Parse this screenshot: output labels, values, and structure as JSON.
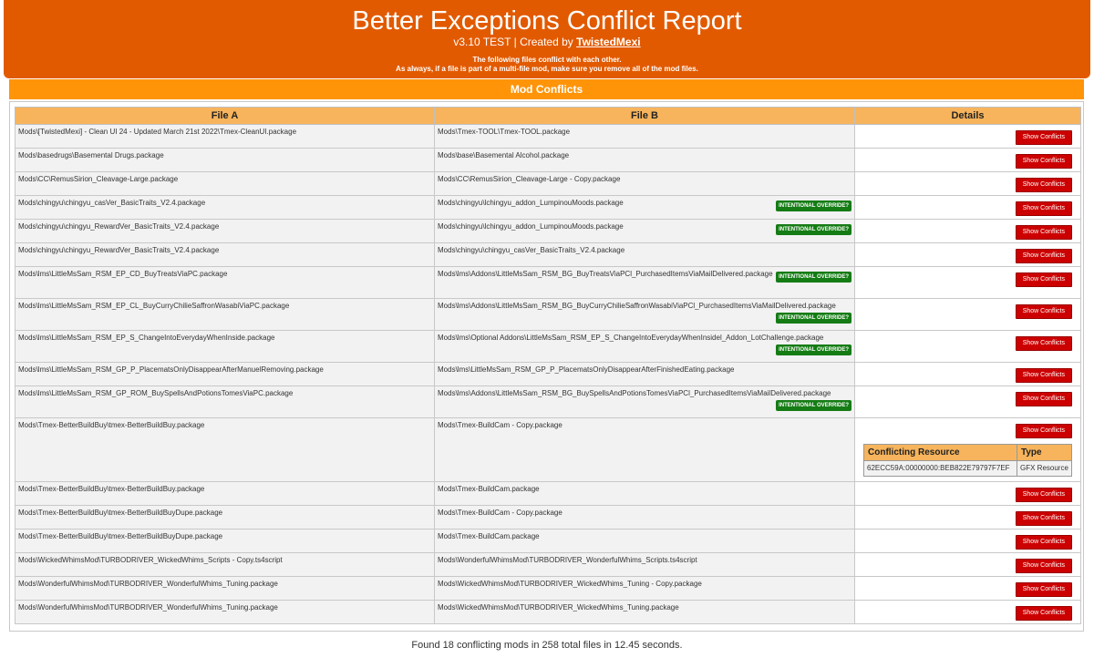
{
  "header": {
    "title": "Better Exceptions Conflict Report",
    "version_text": "v3.10 TEST | Created by",
    "author": "TwistedMexi",
    "notice_line1": "The following files conflict with each other.",
    "notice_line2": "As always, if a file is part of a multi-file mod, make sure you remove all of the mod files."
  },
  "section": {
    "title": "Mod Conflicts"
  },
  "table": {
    "headers": [
      "File A",
      "File B",
      "Details"
    ],
    "button_label": "Show Conflicts",
    "badge_label": "INTENTIONAL OVERRIDE?",
    "rows": [
      {
        "a": "Mods\\[TwistedMexi] - Clean UI 24 - Updated March 21st 2022\\Tmex-CleanUI.package",
        "b": "Mods\\Tmex-TOOL\\Tmex-TOOL.package"
      },
      {
        "a": "Mods\\basedrugs\\Basemental Drugs.package",
        "b": "Mods\\base\\Basemental Alcohol.package"
      },
      {
        "a": "Mods\\CC\\RemusSirion_Cleavage-Large.package",
        "b": "Mods\\CC\\RemusSirion_Cleavage-Large - Copy.package"
      },
      {
        "a": "Mods\\chingyu\\chingyu_casVer_BasicTraits_V2.4.package",
        "b": "Mods\\chingyu\\lchingyu_addon_LumpinouMoods.package",
        "badge": true
      },
      {
        "a": "Mods\\chingyu\\chingyu_RewardVer_BasicTraits_V2.4.package",
        "b": "Mods\\chingyu\\lchingyu_addon_LumpinouMoods.package",
        "badge": true
      },
      {
        "a": "Mods\\chingyu\\chingyu_RewardVer_BasicTraits_V2.4.package",
        "b": "Mods\\chingyu\\chingyu_casVer_BasicTraits_V2.4.package"
      },
      {
        "a": "Mods\\lms\\LittleMsSam_RSM_EP_CD_BuyTreatsViaPC.package",
        "b": "Mods\\lms\\Addons\\LittleMsSam_RSM_BG_BuyTreatsViaPCl_PurchasedItemsViaMailDelivered.package",
        "badge": true
      },
      {
        "a": "Mods\\lms\\LittleMsSam_RSM_EP_CL_BuyCurryChilieSaffronWasabiViaPC.package",
        "b": "Mods\\lms\\Addons\\LittleMsSam_RSM_BG_BuyCurryChilieSaffronWasabiViaPCl_PurchasedItemsViaMailDelivered.package",
        "badge": true
      },
      {
        "a": "Mods\\lms\\LittleMsSam_RSM_EP_S_ChangeIntoEverydayWhenInside.package",
        "b": "Mods\\lms\\Optional Addons\\LittleMsSam_RSM_EP_S_ChangeIntoEverydayWhenInsidel_Addon_LotChallenge.package",
        "badge": true
      },
      {
        "a": "Mods\\lms\\LittleMsSam_RSM_GP_P_PlacematsOnlyDisappearAfterManuelRemoving.package",
        "b": "Mods\\lms\\LittleMsSam_RSM_GP_P_PlacematsOnlyDisappearAfterFinishedEating.package"
      },
      {
        "a": "Mods\\lms\\LittleMsSam_RSM_GP_ROM_BuySpellsAndPotionsTomesViaPC.package",
        "b": "Mods\\lms\\Addons\\LittleMsSam_RSM_BG_BuySpellsAndPotionsTomesViaPCl_PurchasedItemsViaMailDelivered.package",
        "badge": true
      },
      {
        "a": "Mods\\Tmex-BetterBuildBuy\\tmex-BetterBuildBuy.package",
        "b": "Mods\\Tmex-BuildCam - Copy.package",
        "resource": {
          "headers": [
            "Conflicting Resource",
            "Type"
          ],
          "id": "62ECC59A:00000000:BEB822E79797F7EF",
          "type": "GFX Resource"
        }
      },
      {
        "a": "Mods\\Tmex-BetterBuildBuy\\tmex-BetterBuildBuy.package",
        "b": "Mods\\Tmex-BuildCam.package"
      },
      {
        "a": "Mods\\Tmex-BetterBuildBuy\\tmex-BetterBuildBuyDupe.package",
        "b": "Mods\\Tmex-BuildCam - Copy.package"
      },
      {
        "a": "Mods\\Tmex-BetterBuildBuy\\tmex-BetterBuildBuyDupe.package",
        "b": "Mods\\Tmex-BuildCam.package"
      },
      {
        "a": "Mods\\WickedWhimsMod\\TURBODRIVER_WickedWhims_Scripts - Copy.ts4script",
        "b": "Mods\\WonderfulWhimsMod\\TURBODRIVER_WonderfulWhims_Scripts.ts4script"
      },
      {
        "a": "Mods\\WonderfulWhimsMod\\TURBODRIVER_WonderfulWhims_Tuning.package",
        "b": "Mods\\WickedWhimsMod\\TURBODRIVER_WickedWhims_Tuning - Copy.package"
      },
      {
        "a": "Mods\\WonderfulWhimsMod\\TURBODRIVER_WonderfulWhims_Tuning.package",
        "b": "Mods\\WickedWhimsMod\\TURBODRIVER_WickedWhims_Tuning.package"
      }
    ]
  },
  "footer": {
    "summary": "Found 18 conflicting mods in 258 total files in 12.45 seconds."
  }
}
